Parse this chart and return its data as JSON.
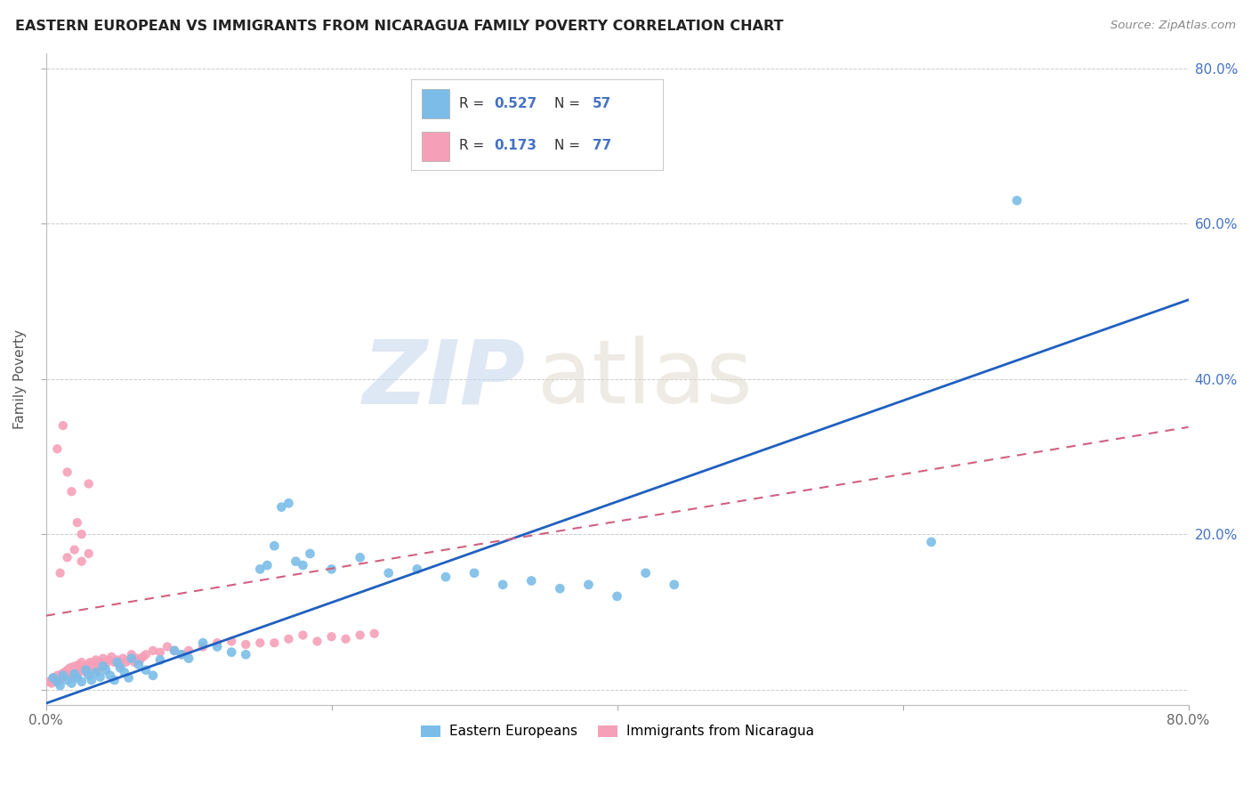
{
  "title": "EASTERN EUROPEAN VS IMMIGRANTS FROM NICARAGUA FAMILY POVERTY CORRELATION CHART",
  "source": "Source: ZipAtlas.com",
  "ylabel": "Family Poverty",
  "xlim": [
    0.0,
    0.8
  ],
  "ylim": [
    -0.02,
    0.82
  ],
  "xtick_vals": [
    0.0,
    0.2,
    0.4,
    0.6,
    0.8
  ],
  "xtick_labels": [
    "0.0%",
    "",
    "",
    "",
    "80.0%"
  ],
  "ytick_vals": [
    0.0,
    0.2,
    0.4,
    0.6,
    0.8
  ],
  "ytick_labels_left": [
    "",
    "",
    "",
    "",
    ""
  ],
  "ytick_labels_right": [
    "",
    "20.0%",
    "40.0%",
    "60.0%",
    "80.0%"
  ],
  "blue_R": 0.527,
  "blue_N": 57,
  "pink_R": 0.173,
  "pink_N": 77,
  "blue_color": "#7bbde8",
  "pink_color": "#f5a0b8",
  "blue_line_color": "#2060c0",
  "pink_line_color": "#d06080",
  "legend_label_blue": "Eastern Europeans",
  "legend_label_pink": "Immigrants from Nicaragua",
  "blue_scatter_x": [
    0.005,
    0.008,
    0.01,
    0.012,
    0.015,
    0.018,
    0.02,
    0.022,
    0.025,
    0.028,
    0.03,
    0.032,
    0.035,
    0.038,
    0.04,
    0.042,
    0.045,
    0.048,
    0.05,
    0.052,
    0.055,
    0.058,
    0.06,
    0.065,
    0.07,
    0.075,
    0.08,
    0.09,
    0.095,
    0.1,
    0.11,
    0.12,
    0.13,
    0.14,
    0.15,
    0.155,
    0.16,
    0.165,
    0.17,
    0.175,
    0.18,
    0.185,
    0.2,
    0.22,
    0.24,
    0.26,
    0.28,
    0.3,
    0.32,
    0.34,
    0.36,
    0.38,
    0.4,
    0.42,
    0.44,
    0.62,
    0.68
  ],
  "blue_scatter_y": [
    0.015,
    0.01,
    0.005,
    0.018,
    0.012,
    0.008,
    0.02,
    0.015,
    0.01,
    0.025,
    0.018,
    0.012,
    0.022,
    0.016,
    0.03,
    0.025,
    0.018,
    0.012,
    0.035,
    0.028,
    0.022,
    0.015,
    0.04,
    0.032,
    0.025,
    0.018,
    0.038,
    0.05,
    0.045,
    0.04,
    0.06,
    0.055,
    0.048,
    0.045,
    0.155,
    0.16,
    0.185,
    0.235,
    0.24,
    0.165,
    0.16,
    0.175,
    0.155,
    0.17,
    0.15,
    0.155,
    0.145,
    0.15,
    0.135,
    0.14,
    0.13,
    0.135,
    0.12,
    0.15,
    0.135,
    0.19,
    0.63
  ],
  "pink_scatter_x": [
    0.002,
    0.004,
    0.005,
    0.006,
    0.007,
    0.008,
    0.009,
    0.01,
    0.011,
    0.012,
    0.013,
    0.014,
    0.015,
    0.016,
    0.017,
    0.018,
    0.019,
    0.02,
    0.021,
    0.022,
    0.023,
    0.024,
    0.025,
    0.026,
    0.027,
    0.028,
    0.029,
    0.03,
    0.031,
    0.032,
    0.033,
    0.034,
    0.035,
    0.036,
    0.037,
    0.038,
    0.039,
    0.04,
    0.042,
    0.044,
    0.046,
    0.048,
    0.05,
    0.052,
    0.054,
    0.056,
    0.058,
    0.06,
    0.062,
    0.064,
    0.066,
    0.068,
    0.07,
    0.075,
    0.08,
    0.085,
    0.09,
    0.095,
    0.1,
    0.11,
    0.12,
    0.13,
    0.14,
    0.15,
    0.01,
    0.015,
    0.02,
    0.025,
    0.03,
    0.16,
    0.17,
    0.18,
    0.19,
    0.2,
    0.21,
    0.22,
    0.23
  ],
  "pink_scatter_y": [
    0.01,
    0.008,
    0.012,
    0.015,
    0.01,
    0.018,
    0.012,
    0.015,
    0.02,
    0.016,
    0.022,
    0.018,
    0.025,
    0.02,
    0.028,
    0.022,
    0.015,
    0.03,
    0.025,
    0.018,
    0.032,
    0.028,
    0.035,
    0.025,
    0.03,
    0.022,
    0.028,
    0.032,
    0.035,
    0.025,
    0.03,
    0.035,
    0.038,
    0.025,
    0.032,
    0.028,
    0.035,
    0.04,
    0.032,
    0.038,
    0.042,
    0.035,
    0.038,
    0.032,
    0.04,
    0.035,
    0.038,
    0.045,
    0.035,
    0.04,
    0.038,
    0.042,
    0.045,
    0.05,
    0.048,
    0.055,
    0.05,
    0.045,
    0.05,
    0.055,
    0.06,
    0.062,
    0.058,
    0.06,
    0.15,
    0.17,
    0.18,
    0.165,
    0.175,
    0.06,
    0.065,
    0.07,
    0.062,
    0.068,
    0.065,
    0.07,
    0.072
  ],
  "pink_outlier_x": [
    0.012,
    0.015,
    0.018,
    0.022,
    0.025,
    0.008,
    0.03
  ],
  "pink_outlier_y": [
    0.34,
    0.28,
    0.255,
    0.215,
    0.2,
    0.31,
    0.265
  ]
}
